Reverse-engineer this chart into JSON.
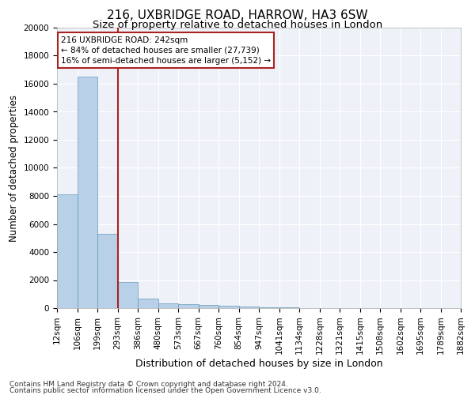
{
  "title1": "216, UXBRIDGE ROAD, HARROW, HA3 6SW",
  "title2": "Size of property relative to detached houses in London",
  "xlabel": "Distribution of detached houses by size in London",
  "ylabel": "Number of detached properties",
  "bar_values": [
    8100,
    16500,
    5300,
    1850,
    700,
    350,
    280,
    220,
    180,
    120,
    60,
    30,
    20,
    15,
    10,
    8,
    5,
    4,
    3,
    2
  ],
  "bin_labels": [
    "12sqm",
    "106sqm",
    "199sqm",
    "293sqm",
    "386sqm",
    "480sqm",
    "573sqm",
    "667sqm",
    "760sqm",
    "854sqm",
    "947sqm",
    "1041sqm",
    "1134sqm",
    "1228sqm",
    "1321sqm",
    "1415sqm",
    "1508sqm",
    "1602sqm",
    "1695sqm",
    "1789sqm",
    "1882sqm"
  ],
  "bar_color": "#b8d0e8",
  "bar_edge_color": "#6699bb",
  "vline_x": 2.5,
  "vline_color": "#aa2222",
  "annotation_text": "216 UXBRIDGE ROAD: 242sqm\n← 84% of detached houses are smaller (27,739)\n16% of semi-detached houses are larger (5,152) →",
  "annotation_box_color": "#aa2222",
  "ylim": [
    0,
    20000
  ],
  "yticks": [
    0,
    2000,
    4000,
    6000,
    8000,
    10000,
    12000,
    14000,
    16000,
    18000,
    20000
  ],
  "footer1": "Contains HM Land Registry data © Crown copyright and database right 2024.",
  "footer2": "Contains public sector information licensed under the Open Government Licence v3.0.",
  "background_color": "#eef2f8",
  "grid_color": "#ffffff",
  "title1_fontsize": 11,
  "title2_fontsize": 9.5,
  "axis_fontsize": 7.5,
  "ylabel_fontsize": 8.5,
  "xlabel_fontsize": 9,
  "footer_fontsize": 6.5,
  "annotation_fontsize": 7.5
}
